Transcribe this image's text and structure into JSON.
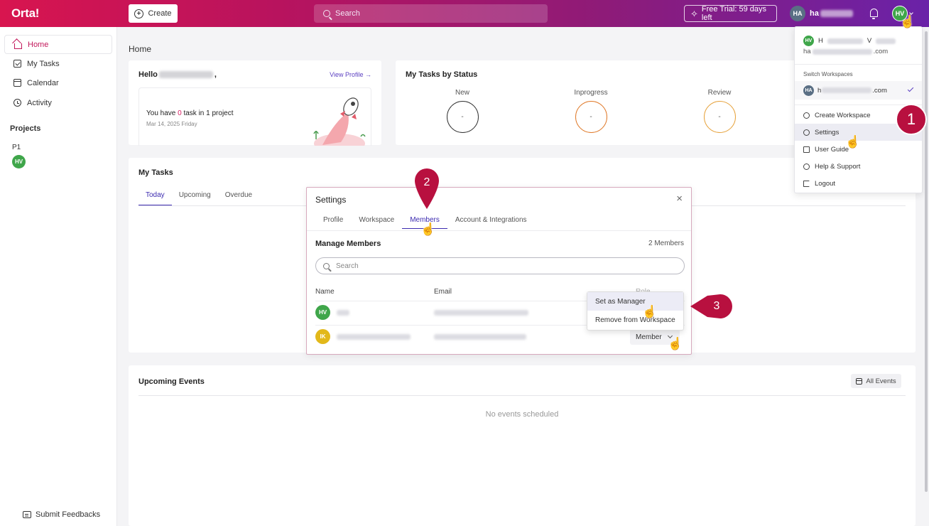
{
  "topbar": {
    "logo": "Orta!",
    "create_label": "Create",
    "search_placeholder": "Search",
    "trial_label": "Free Trial: 59 days left",
    "user_initials": "HA",
    "user_name_visible": "ha",
    "avatar_initials": "HV",
    "brand_gradient": [
      "#d8154f",
      "#6a22a8"
    ]
  },
  "sidebar": {
    "items": [
      {
        "label": "Home",
        "icon": "home-icon",
        "active": true
      },
      {
        "label": "My Tasks",
        "icon": "checkbox-icon"
      },
      {
        "label": "Calendar",
        "icon": "calendar-icon"
      },
      {
        "label": "Activity",
        "icon": "history-icon"
      }
    ],
    "projects_heading": "Projects",
    "project_name": "P1",
    "project_avatar": "HV",
    "feedback_label": "Submit Feedbacks"
  },
  "main": {
    "page_title": "Home",
    "hello": {
      "greeting": "Hello",
      "suffix": ",",
      "view_profile": "View Profile →",
      "task_prefix": "You have ",
      "task_count": "0",
      "task_suffix": " task in 1 project",
      "date": "Mar 14, 2025 Friday"
    },
    "status": {
      "title": "My Tasks by Status",
      "columns": [
        {
          "label": "New",
          "value": "-",
          "color": "#333333"
        },
        {
          "label": "Inprogress",
          "value": "-",
          "color": "#e07a2a"
        },
        {
          "label": "Review",
          "value": "-",
          "color": "#e6a23c"
        }
      ]
    },
    "tasks": {
      "title": "My Tasks",
      "tabs": [
        "Today",
        "Upcoming",
        "Overdue"
      ]
    },
    "events": {
      "title": "Upcoming Events",
      "all_events": "All Events",
      "empty": "No events scheduled"
    }
  },
  "settings_modal": {
    "title": "Settings",
    "close": "×",
    "tabs": [
      "Profile",
      "Workspace",
      "Members",
      "Account & Integrations"
    ],
    "active_tab": "Members",
    "manage_title": "Manage Members",
    "member_count": "2 Members",
    "search_placeholder": "Search",
    "columns": {
      "name": "Name",
      "email": "Email",
      "role": "Role"
    },
    "members": [
      {
        "initials": "HV",
        "role": ""
      },
      {
        "initials": "IK",
        "role": "Member"
      }
    ],
    "role_menu": [
      "Set as Manager",
      "Remove from Workspace"
    ]
  },
  "profile_menu": {
    "name_initial": "H",
    "name_mid": "V",
    "email_prefix": "ha",
    "email_suffix": ".com",
    "switch_heading": "Switch Workspaces",
    "workspace_initials": "HA",
    "workspace_prefix": "h",
    "workspace_suffix": ".com",
    "items": [
      "Create Workspace",
      "Settings",
      "User Guide",
      "Help & Support",
      "Logout"
    ]
  },
  "annotations": {
    "step1": "1",
    "step2": "2",
    "step3": "3",
    "color": "#b8103f"
  }
}
